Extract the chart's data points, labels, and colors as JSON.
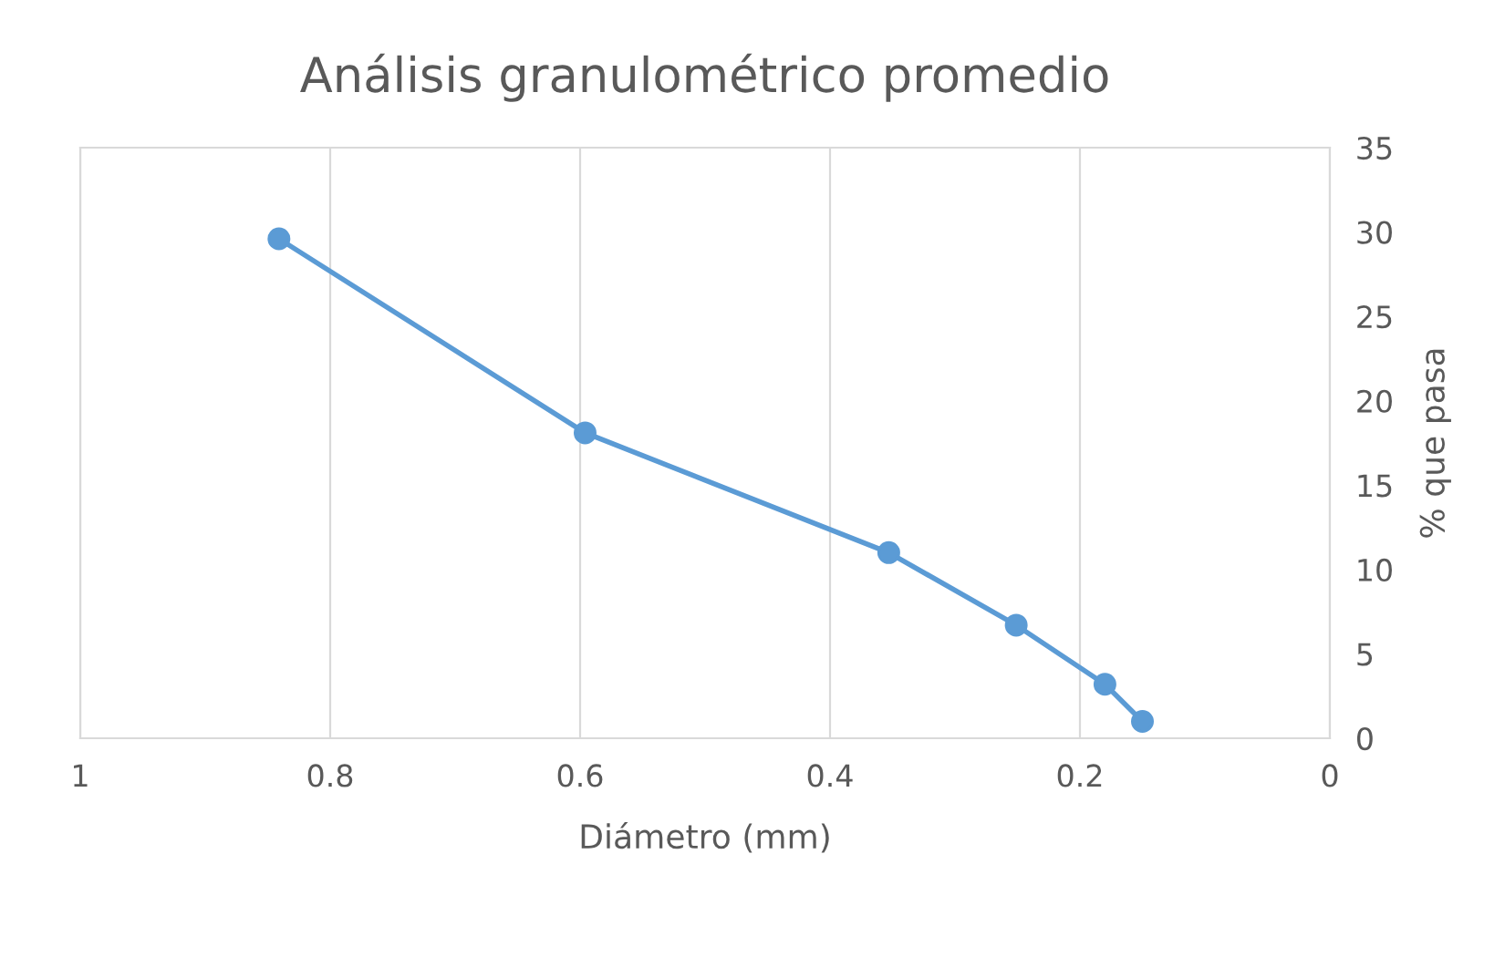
{
  "chart_data": {
    "type": "line",
    "title": "Análisis granulométrico promedio",
    "xlabel": "Diámetro (mm)",
    "ylabel": "% que pasa",
    "x": [
      0.841,
      0.596,
      0.353,
      0.251,
      0.18,
      0.15
    ],
    "series": [
      {
        "color": "#5b9bd5",
        "values": [
          29.6,
          18.1,
          11.0,
          6.7,
          3.2,
          1.0
        ]
      }
    ],
    "xlim": [
      1,
      0
    ],
    "xticks": [
      1,
      0.8,
      0.6,
      0.4,
      0.2,
      0
    ],
    "ylim": [
      0,
      35
    ],
    "yticks": [
      0,
      5,
      10,
      15,
      20,
      25,
      30,
      35
    ],
    "grid": "x",
    "marker": "circle",
    "line_style": "solid",
    "legend": false
  }
}
